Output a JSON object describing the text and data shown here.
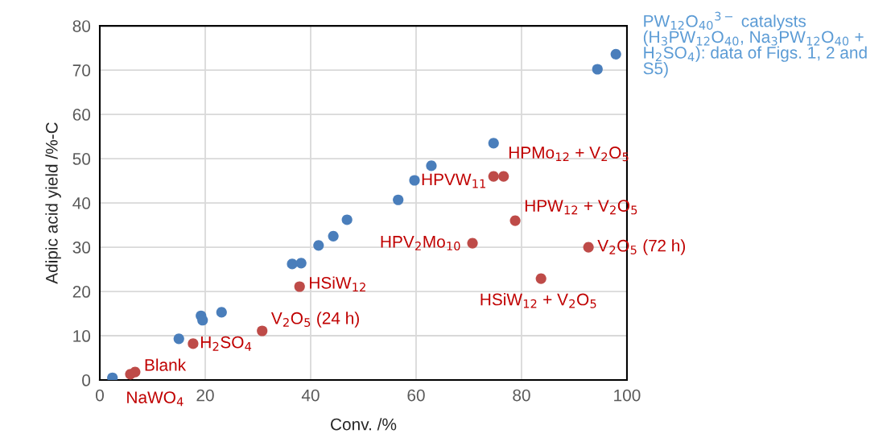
{
  "chart_data": {
    "type": "scatter",
    "xlabel": "Conv. /%",
    "ylabel": "Adipic acid yield /%-C",
    "xlim": [
      0,
      100
    ],
    "ylim": [
      0,
      80
    ],
    "xticks": [
      0,
      20,
      40,
      60,
      80,
      100
    ],
    "yticks": [
      0,
      10,
      20,
      30,
      40,
      50,
      60,
      70,
      80
    ],
    "grid": true,
    "marker": "circle",
    "legend": false,
    "series": [
      {
        "name": "PW$_{12}$O$_{40}$$^{3−}$ catalysts (H$_{3}$PW$_{12}$O$_{40}$, Na$_{3}$PW$_{12}$O$_{40}$ + H$_{2}$SO$_{4}$): data of Figs. 1, 2 and S5)",
        "color": "#4a7ebb",
        "x": [
          2.4,
          15.0,
          19.2,
          19.5,
          23.1,
          36.5,
          38.2,
          41.5,
          44.3,
          46.9,
          56.6,
          59.7,
          62.9,
          74.7,
          94.4,
          97.9
        ],
        "values": [
          0.5,
          9.3,
          14.5,
          13.5,
          15.3,
          26.2,
          26.4,
          30.4,
          32.5,
          36.2,
          40.7,
          45.1,
          48.4,
          53.5,
          70.2,
          73.6
        ]
      },
      {
        "color": "#be4b48",
        "x": [
          5.8,
          6.7,
          17.7,
          30.8,
          37.9,
          70.7,
          74.7,
          76.6,
          78.8,
          92.7,
          83.7
        ],
        "values": [
          1.3,
          1.8,
          8.2,
          11.1,
          21.1,
          30.9,
          46.0,
          46.0,
          36.0,
          30.0,
          22.9
        ]
      }
    ],
    "annotations": [
      {
        "text": "NaWO$_{4}$",
        "x": 5.8,
        "y": 1.3
      },
      {
        "text": "Blank",
        "x": 6.7,
        "y": 1.8
      },
      {
        "text": "H$_{2}$SO$_{4}$",
        "x": 17.7,
        "y": 8.2
      },
      {
        "text": "V$_{2}$O$_{5}$ (24 h)",
        "x": 30.8,
        "y": 11.1
      },
      {
        "text": "HSiW$_{12}$",
        "x": 37.9,
        "y": 21.1
      },
      {
        "text": "HPV$_{2}$Mo$_{10}$",
        "x": 70.7,
        "y": 30.9
      },
      {
        "text": "HPVW$_{11}$",
        "x": 74.7,
        "y": 46.0
      },
      {
        "text": "HPMo$_{12}$ + V$_{2}$O$_{5}$",
        "x": 76.6,
        "y": 46.0
      },
      {
        "text": "HPW$_{12}$ + V$_{2}$O$_{5}$",
        "x": 78.8,
        "y": 36.0
      },
      {
        "text": "V$_{2}$O$_{5}$ (72 h)",
        "x": 92.7,
        "y": 30.0
      },
      {
        "text": "HSiW$_{12}$ + V$_{2}$O$_{5}$",
        "x": 83.7,
        "y": 22.9
      }
    ]
  }
}
